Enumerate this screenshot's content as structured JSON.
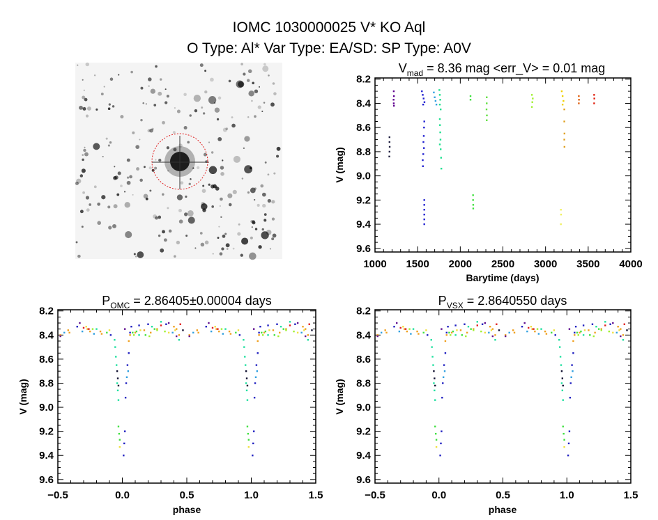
{
  "header": {
    "line1": "IOMC 1030000025   V* KO Aql",
    "line2": "O Type: Al*  Var Type: EA/SD:  SP Type: A0V"
  },
  "image": {
    "kind": "finder-chart",
    "circle_color": "#e02020"
  },
  "chart_data": [
    {
      "type": "scatter",
      "title_main": "V",
      "title_sub": "mad",
      "title_rest": " = 8.36 mag <err_V> = 0.01 mag",
      "xlabel": "Barytime (days)",
      "ylabel": "V (mag)",
      "xlim": [
        1000,
        4000
      ],
      "ylim": [
        8.19,
        9.63
      ],
      "y_inverted": true,
      "xticks": [
        "1000",
        "1500",
        "2000",
        "2500",
        "3000",
        "3500",
        "4000"
      ],
      "yticks": [
        "8.2",
        "8.4",
        "8.6",
        "8.8",
        "9.0",
        "9.2",
        "9.4",
        "9.6"
      ],
      "grid": false,
      "series": [
        {
          "color": "#202040",
          "points": [
            [
              1170,
              8.68
            ],
            [
              1170,
              8.72
            ],
            [
              1172,
              8.76
            ],
            [
              1170,
              8.8
            ],
            [
              1168,
              8.84
            ]
          ]
        },
        {
          "color": "#600090",
          "points": [
            [
              1220,
              8.3
            ],
            [
              1222,
              8.34
            ],
            [
              1218,
              8.37
            ],
            [
              1220,
              8.4
            ],
            [
              1222,
              8.42
            ]
          ]
        },
        {
          "color": "#2020d0",
          "points": [
            [
              1550,
              8.3
            ],
            [
              1560,
              8.33
            ],
            [
              1570,
              8.36
            ],
            [
              1580,
              8.39
            ],
            [
              1565,
              8.41
            ],
            [
              1578,
              8.55
            ],
            [
              1575,
              8.6
            ],
            [
              1572,
              8.67
            ],
            [
              1568,
              8.72
            ],
            [
              1574,
              8.77
            ],
            [
              1566,
              8.82
            ],
            [
              1560,
              8.87
            ],
            [
              1562,
              8.92
            ],
            [
              1578,
              9.2
            ],
            [
              1578,
              9.24
            ],
            [
              1578,
              9.28
            ],
            [
              1578,
              9.32
            ],
            [
              1578,
              9.36
            ],
            [
              1578,
              9.4
            ]
          ]
        },
        {
          "color": "#30a0e0",
          "points": [
            [
              1690,
              8.31
            ],
            [
              1700,
              8.35
            ],
            [
              1710,
              8.38
            ],
            [
              1720,
              8.41
            ]
          ]
        },
        {
          "color": "#20e090",
          "points": [
            [
              1755,
              8.29
            ],
            [
              1760,
              8.33
            ],
            [
              1765,
              8.37
            ],
            [
              1760,
              8.41
            ],
            [
              1770,
              8.45
            ],
            [
              1760,
              8.53
            ],
            [
              1762,
              8.58
            ],
            [
              1765,
              8.64
            ],
            [
              1768,
              8.7
            ],
            [
              1760,
              8.74
            ],
            [
              1770,
              8.78
            ],
            [
              1775,
              8.85
            ],
            [
              1778,
              8.94
            ]
          ]
        },
        {
          "color": "#40e040",
          "points": [
            [
              2120,
              8.34
            ],
            [
              2120,
              8.37
            ],
            [
              2150,
              9.16
            ],
            [
              2150,
              9.2
            ],
            [
              2152,
              9.24
            ],
            [
              2152,
              9.27
            ]
          ]
        },
        {
          "color": "#60e040",
          "points": [
            [
              2310,
              8.35
            ],
            [
              2310,
              8.4
            ],
            [
              2308,
              8.45
            ],
            [
              2312,
              8.5
            ],
            [
              2310,
              8.54
            ]
          ]
        },
        {
          "color": "#a0f030",
          "points": [
            [
              2840,
              8.33
            ],
            [
              2850,
              8.36
            ],
            [
              2845,
              8.39
            ],
            [
              2840,
              8.43
            ]
          ]
        },
        {
          "color": "#f0f060",
          "points": [
            [
              3180,
              9.28
            ],
            [
              3182,
              9.32
            ],
            [
              3180,
              9.4
            ]
          ]
        },
        {
          "color": "#f0d000",
          "points": [
            [
              3190,
              8.3
            ],
            [
              3200,
              8.34
            ],
            [
              3210,
              8.38
            ],
            [
              3200,
              8.41
            ]
          ]
        },
        {
          "color": "#e0a020",
          "points": [
            [
              3220,
              8.45
            ],
            [
              3220,
              8.55
            ],
            [
              3222,
              8.65
            ],
            [
              3220,
              8.7
            ],
            [
              3222,
              8.76
            ]
          ]
        },
        {
          "color": "#e06010",
          "points": [
            [
              3390,
              8.34
            ],
            [
              3392,
              8.37
            ],
            [
              3390,
              8.4
            ]
          ]
        },
        {
          "color": "#e02010",
          "points": [
            [
              3570,
              8.33
            ],
            [
              3572,
              8.36
            ],
            [
              3570,
              8.4
            ]
          ]
        }
      ]
    },
    {
      "type": "scatter",
      "title_main": "P",
      "title_sub": "OMC",
      "title_rest": " = 2.86405±0.00004 days",
      "xlabel": "phase",
      "ylabel": "V (mag)",
      "xlim": [
        -0.5,
        1.5
      ],
      "ylim": [
        8.19,
        9.63
      ],
      "y_inverted": true,
      "xticks": [
        "-0.5",
        "0.0",
        "0.5",
        "1.0",
        "1.5"
      ],
      "yticks": [
        "8.2",
        "8.4",
        "8.6",
        "8.8",
        "9.0",
        "9.2",
        "9.4",
        "9.6"
      ],
      "grid": false,
      "phase_repeated": true,
      "series": "phase_series"
    },
    {
      "type": "scatter",
      "title_main": "P",
      "title_sub": "VSX",
      "title_rest": " = 2.8640550 days",
      "xlabel": "phase",
      "ylabel": "V (mag)",
      "xlim": [
        -0.5,
        1.5
      ],
      "ylim": [
        8.19,
        9.63
      ],
      "y_inverted": true,
      "xticks": [
        "-0.5",
        "0.0",
        "0.5",
        "1.0",
        "1.5"
      ],
      "yticks": [
        "8.2",
        "8.4",
        "8.6",
        "8.8",
        "9.0",
        "9.2",
        "9.4",
        "9.6"
      ],
      "grid": false,
      "phase_repeated": true,
      "series": "phase_series"
    }
  ],
  "phase_series": [
    {
      "color": "#f0a020",
      "points": [
        [
          -0.42,
          8.36
        ],
        [
          -0.41,
          8.38
        ],
        [
          -0.27,
          8.35
        ],
        [
          -0.25,
          8.37
        ],
        [
          -0.17,
          8.37
        ],
        [
          -0.16,
          8.39
        ],
        [
          0.05,
          8.45
        ],
        [
          0.06,
          8.4
        ],
        [
          0.1,
          8.38
        ],
        [
          0.17,
          8.36
        ],
        [
          0.22,
          8.38
        ],
        [
          0.27,
          8.35
        ],
        [
          0.4,
          8.33
        ],
        [
          0.42,
          8.35
        ],
        [
          0.44,
          8.4
        ],
        [
          -0.48,
          8.4
        ]
      ]
    },
    {
      "color": "#e02020",
      "points": [
        [
          -0.3,
          8.34
        ],
        [
          -0.26,
          8.35
        ],
        [
          0.3,
          8.32
        ],
        [
          0.45,
          8.31
        ]
      ]
    },
    {
      "color": "#601090",
      "points": [
        [
          -0.33,
          8.3
        ],
        [
          -0.48,
          8.41
        ],
        [
          0.02,
          8.35
        ],
        [
          0.36,
          8.3
        ],
        [
          0.42,
          8.41
        ]
      ]
    },
    {
      "color": "#2020c0",
      "points": [
        [
          0.01,
          9.4
        ],
        [
          0.015,
          9.3
        ],
        [
          0.02,
          9.2
        ],
        [
          0.025,
          8.92
        ],
        [
          0.03,
          8.8
        ],
        [
          0.04,
          8.65
        ],
        [
          0.05,
          8.55
        ],
        [
          0.06,
          8.38
        ],
        [
          0.07,
          8.33
        ],
        [
          0.13,
          8.32
        ],
        [
          0.2,
          8.31
        ],
        [
          0.34,
          8.31
        ],
        [
          -0.35,
          8.33
        ],
        [
          -0.09,
          8.4
        ]
      ]
    },
    {
      "color": "#30a0e0",
      "points": [
        [
          0.035,
          8.75
        ],
        [
          0.045,
          8.7
        ],
        [
          -0.22,
          8.39
        ],
        [
          -0.31,
          8.37
        ],
        [
          0.39,
          8.38
        ],
        [
          -0.45,
          8.38
        ]
      ]
    },
    {
      "color": "#20e0a0",
      "points": [
        [
          -0.06,
          8.44
        ],
        [
          -0.055,
          8.5
        ],
        [
          -0.05,
          8.58
        ],
        [
          -0.045,
          8.65
        ],
        [
          -0.04,
          8.8
        ],
        [
          -0.035,
          8.86
        ],
        [
          -0.03,
          8.94
        ],
        [
          0.23,
          8.33
        ],
        [
          0.3,
          8.29
        ],
        [
          -0.2,
          8.35
        ],
        [
          0.44,
          8.44
        ],
        [
          0.13,
          8.4
        ]
      ]
    },
    {
      "color": "#40e040",
      "points": [
        [
          -0.03,
          9.16
        ],
        [
          -0.025,
          9.22
        ],
        [
          -0.02,
          9.27
        ],
        [
          0.08,
          8.38
        ],
        [
          0.11,
          8.37
        ],
        [
          0.18,
          8.4
        ],
        [
          0.25,
          8.35
        ],
        [
          -0.12,
          8.38
        ]
      ]
    },
    {
      "color": "#101030",
      "points": [
        [
          -0.04,
          8.7
        ],
        [
          -0.035,
          8.76
        ],
        [
          -0.03,
          8.82
        ],
        [
          0.47,
          8.36
        ]
      ]
    },
    {
      "color": "#f0e040",
      "points": [
        [
          -0.02,
          9.33
        ],
        [
          -0.28,
          8.33
        ],
        [
          0.14,
          8.36
        ],
        [
          0.36,
          8.38
        ],
        [
          0.41,
          8.36
        ],
        [
          -0.1,
          8.36
        ]
      ]
    },
    {
      "color": "#a0f030",
      "points": [
        [
          0.09,
          8.4
        ],
        [
          0.21,
          8.41
        ],
        [
          0.27,
          8.36
        ],
        [
          -0.23,
          8.35
        ],
        [
          0.33,
          8.37
        ]
      ]
    }
  ]
}
